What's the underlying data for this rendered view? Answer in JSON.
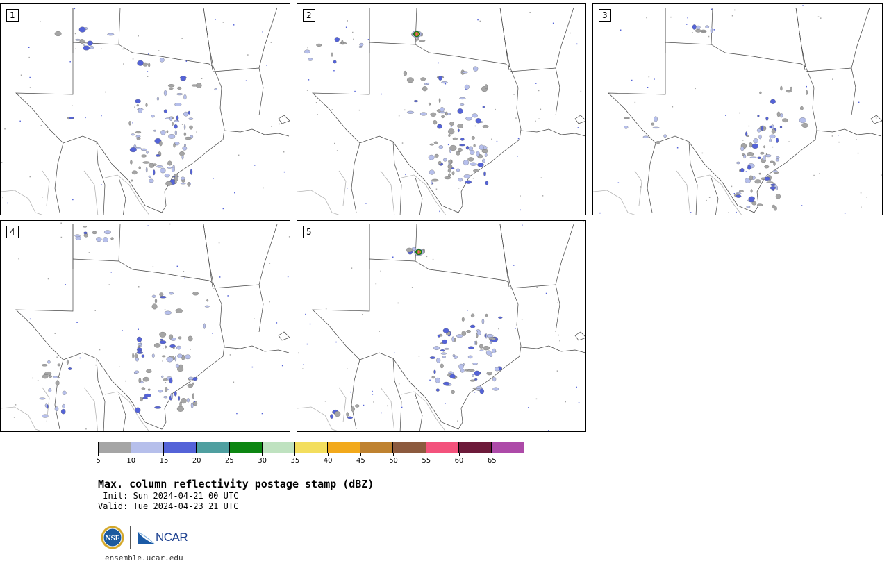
{
  "panels": [
    {
      "number": "1"
    },
    {
      "number": "2"
    },
    {
      "number": "3"
    },
    {
      "number": "4"
    },
    {
      "number": "5"
    }
  ],
  "colorbar": {
    "colors": [
      "#a5a5a5",
      "#b6bfeb",
      "#5463d8",
      "#4f9fa0",
      "#0c8612",
      "#bfe2c0",
      "#f3de5e",
      "#f2a91b",
      "#bf8230",
      "#8c5a3e",
      "#f3527c",
      "#6d1a3a",
      "#ad4aa8"
    ],
    "tick_labels": [
      "5",
      "10",
      "15",
      "20",
      "25",
      "30",
      "35",
      "40",
      "45",
      "50",
      "55",
      "60",
      "65"
    ]
  },
  "title": "Max. column reflectivity postage stamp (dBZ)",
  "init_line": " Init: Sun 2024-04-21 00 UTC",
  "valid_line": "Valid: Tue 2024-04-23 21 UTC",
  "logos": {
    "nsf": "NSF",
    "ncar": "NCAR"
  },
  "footer_url": "ensemble.ucar.edu"
}
